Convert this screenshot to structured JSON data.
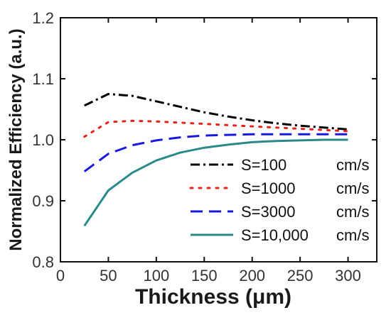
{
  "chart_data": {
    "type": "line",
    "xlabel": "Thickness (μm)",
    "ylabel": "Normalized Efficiency (a.u.)",
    "xlim": [
      0,
      330
    ],
    "ylim": [
      0.8,
      1.2
    ],
    "xticks": [
      0,
      50,
      100,
      150,
      200,
      250,
      300
    ],
    "yticks": [
      0.8,
      0.9,
      1.0,
      1.1,
      1.2
    ],
    "xtick_labels": [
      "0",
      "50",
      "100",
      "150",
      "200",
      "250",
      "300"
    ],
    "ytick_labels": [
      "0.8",
      "0.9",
      "1.0",
      "1.1",
      "1.2"
    ],
    "grid": false,
    "legend_position": "bottom-right",
    "series": [
      {
        "name": "S=100",
        "unit": "cm/s",
        "color": "#000000",
        "dash": "dashdot",
        "x": [
          25,
          50,
          75,
          100,
          125,
          150,
          175,
          200,
          225,
          250,
          275,
          300
        ],
        "y": [
          1.056,
          1.075,
          1.072,
          1.063,
          1.054,
          1.045,
          1.038,
          1.032,
          1.027,
          1.023,
          1.02,
          1.017
        ]
      },
      {
        "name": "S=1000",
        "unit": "cm/s",
        "color": "#e8221b",
        "dash": "dotted",
        "x": [
          25,
          50,
          75,
          100,
          125,
          150,
          175,
          200,
          225,
          250,
          275,
          300
        ],
        "y": [
          1.005,
          1.029,
          1.031,
          1.03,
          1.028,
          1.026,
          1.024,
          1.022,
          1.02,
          1.018,
          1.016,
          1.014
        ]
      },
      {
        "name": "S=3000",
        "unit": "cm/s",
        "color": "#1a1adf",
        "dash": "dashed",
        "x": [
          25,
          50,
          75,
          100,
          125,
          150,
          175,
          200,
          225,
          250,
          275,
          300
        ],
        "y": [
          0.948,
          0.977,
          0.991,
          0.999,
          1.004,
          1.007,
          1.008,
          1.009,
          1.009,
          1.009,
          1.009,
          1.009
        ]
      },
      {
        "name": "S=10,000",
        "unit": "cm/s",
        "color": "#2a8a89",
        "dash": "solid",
        "x": [
          25,
          50,
          75,
          100,
          125,
          150,
          175,
          200,
          225,
          250,
          275,
          300
        ],
        "y": [
          0.859,
          0.917,
          0.946,
          0.966,
          0.979,
          0.987,
          0.992,
          0.996,
          0.998,
          0.999,
          1.0,
          1.0
        ]
      }
    ]
  }
}
